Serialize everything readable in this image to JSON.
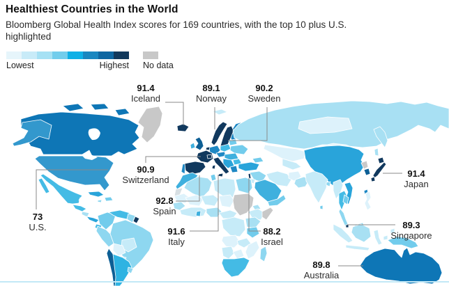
{
  "header": {
    "title": "Healthiest Countries in the World",
    "subtitle": "Bloomberg Global Health Index scores for 169 countries, with the top 10 plus U.S. highlighted"
  },
  "legend": {
    "lowest_label": "Lowest",
    "highest_label": "Highest",
    "no_data_label": "No data",
    "scale_colors": [
      "#e6f5fb",
      "#c8ebf8",
      "#a6e1f4",
      "#72cdec",
      "#0fb0e6",
      "#1a87c0",
      "#0e67a2",
      "#12395c"
    ],
    "no_data_color": "#c8c8c8"
  },
  "map_labels": {
    "iceland": {
      "value": "91.4",
      "name": "Iceland"
    },
    "norway": {
      "value": "89.1",
      "name": "Norway"
    },
    "sweden": {
      "value": "90.2",
      "name": "Sweden"
    },
    "us": {
      "value": "73",
      "name": "U.S."
    },
    "switzerland": {
      "value": "90.9",
      "name": "Switzerland"
    },
    "spain": {
      "value": "92.8",
      "name": "Spain"
    },
    "italy": {
      "value": "91.6",
      "name": "Italy"
    },
    "israel": {
      "value": "88.2",
      "name": "Israel"
    },
    "japan": {
      "value": "91.4",
      "name": "Japan"
    },
    "singapore": {
      "value": "89.3",
      "name": "Singapore"
    },
    "australia": {
      "value": "89.8",
      "name": "Australia"
    }
  },
  "chart_data": {
    "type": "choropleth_map",
    "title": "Healthiest Countries in the World",
    "subtitle": "Bloomberg Global Health Index scores for 169 countries, with the top 10 plus U.S. highlighted",
    "metric": "Bloomberg Global Health Index score",
    "countries_total": 169,
    "legend": {
      "lowest_label": "Lowest",
      "highest_label": "Highest",
      "no_data_label": "No data",
      "scale_colors_low_to_high": [
        "#e6f5fb",
        "#c8ebf8",
        "#a6e1f4",
        "#72cdec",
        "#0fb0e6",
        "#1a87c0",
        "#0e67a2",
        "#12395c"
      ],
      "no_data_color": "#c8c8c8",
      "highlight_color_top10": "#11395e"
    },
    "labeled_points": [
      {
        "country": "Iceland",
        "score": 91.4
      },
      {
        "country": "Norway",
        "score": 89.1
      },
      {
        "country": "Sweden",
        "score": 90.2
      },
      {
        "country": "U.S.",
        "score": 73
      },
      {
        "country": "Switzerland",
        "score": 90.9
      },
      {
        "country": "Spain",
        "score": 92.8
      },
      {
        "country": "Italy",
        "score": 91.6
      },
      {
        "country": "Israel",
        "score": 88.2
      },
      {
        "country": "Japan",
        "score": 91.4
      },
      {
        "country": "Singapore",
        "score": 89.3
      },
      {
        "country": "Australia",
        "score": 89.8
      }
    ]
  }
}
